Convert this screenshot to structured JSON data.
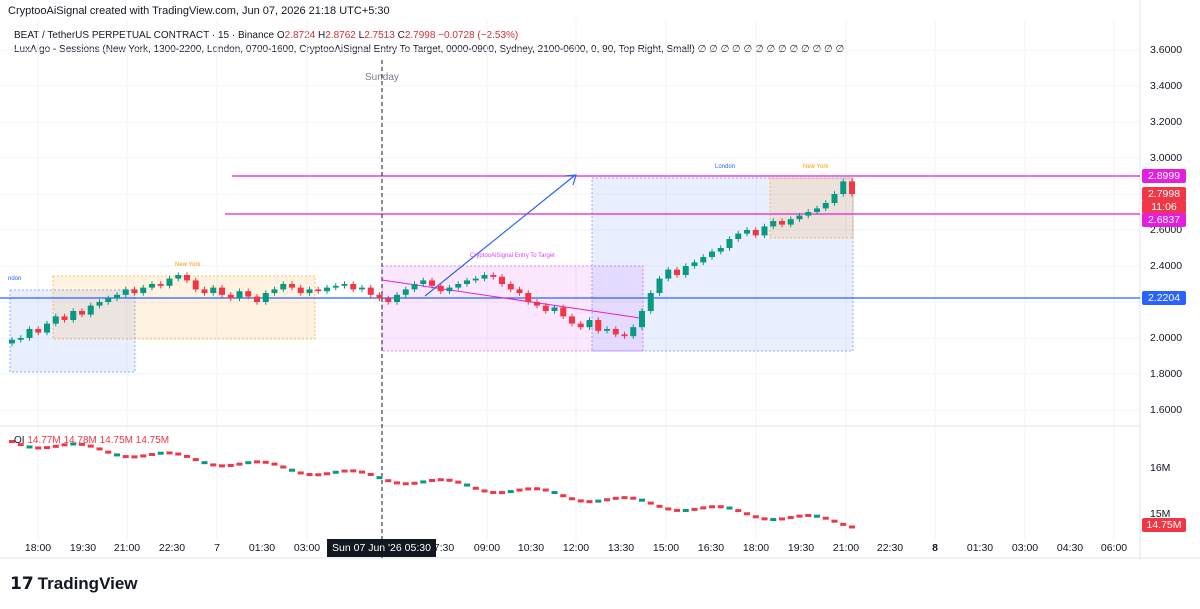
{
  "header": {
    "created_by": "CryptooAiSignal created with TradingView.com, Jun 07, 2026 21:18 UTC+5:30"
  },
  "symbol_legend": {
    "title": "BEAT / TetherUS PERPETUAL CONTRACT · 15 · Binance",
    "o_label": "O",
    "o_value": "2.8724",
    "h_label": "H",
    "h_value": "2.8762",
    "l_label": "L",
    "l_value": "2.7513",
    "c_label": "C",
    "c_value": "2.7998",
    "change": "−0.0728 (−2.53%)"
  },
  "indicator_legend": {
    "text": "LuxAlgo - Sessions (New York, 1300-2200, London, 0700-1600, CryptooAiSignal  Entry To Target, 0000-0900, Sydney, 2100-0600, 0, 90, Top Right, Small)",
    "suffix": "∅ ∅ ∅ ∅ ∅ ∅ ∅ ∅ ∅ ∅ ∅ ∅ ∅"
  },
  "day_marker": "Sunday",
  "sessions": {
    "london_left": "ndon",
    "new_york_left": "New York",
    "entry_target": "CryptooAiSignal  Entry To Target",
    "london_right": "London",
    "new_york_right": "New York"
  },
  "price_axis": [
    "3.6000",
    "3.4000",
    "3.2000",
    "3.0000",
    "2.6000",
    "2.4000",
    "2.0000",
    "1.8000",
    "1.6000"
  ],
  "price_tags": {
    "top_line": "2.8999",
    "last_price": "2.7998",
    "countdown": "11:06",
    "mid_line": "2.6837",
    "blue_line": "2.2204"
  },
  "volume_indicator": {
    "name": "OI",
    "values": [
      "14.77M",
      "14.78M",
      "14.75M",
      "14.75M"
    ],
    "axis": [
      "16M",
      "15M"
    ],
    "tag": "14.75M"
  },
  "time_axis": [
    "18:00",
    "19:30",
    "21:00",
    "22:30",
    "7",
    "01:30",
    "03:00",
    "7:30",
    "09:00",
    "10:30",
    "12:00",
    "13:30",
    "15:00",
    "16:30",
    "18:00",
    "19:30",
    "21:00",
    "22:30",
    "8",
    "01:30",
    "03:00",
    "04:30",
    "06:00"
  ],
  "cursor_time": "Sun 07 Jun '26   05:30",
  "branding": "TradingView",
  "colors": {
    "up": "#089981",
    "down": "#f23645",
    "magenta": "#e21ee0",
    "blue_line": "#2962ff",
    "london_fill": "#2962ff",
    "newyork_fill": "#ff9800",
    "entry_fill": "#e040fb"
  },
  "chart_data": {
    "type": "candlestick",
    "title": "BEAT / TetherUS PERPETUAL CONTRACT · 15 · Binance",
    "ylim": [
      1.5,
      3.7
    ],
    "close_series": [
      1.99,
      2.0,
      2.05,
      2.03,
      2.08,
      2.12,
      2.1,
      2.15,
      2.13,
      2.18,
      2.2,
      2.22,
      2.24,
      2.27,
      2.25,
      2.28,
      2.3,
      2.29,
      2.33,
      2.35,
      2.32,
      2.27,
      2.25,
      2.28,
      2.24,
      2.22,
      2.26,
      2.23,
      2.2,
      2.25,
      2.27,
      2.3,
      2.28,
      2.25,
      2.27,
      2.26,
      2.28,
      2.29,
      2.3,
      2.27,
      2.28,
      2.24,
      2.22,
      2.2,
      2.24,
      2.27,
      2.3,
      2.32,
      2.29,
      2.26,
      2.28,
      2.3,
      2.32,
      2.33,
      2.35,
      2.34,
      2.3,
      2.27,
      2.25,
      2.2,
      2.18,
      2.15,
      2.17,
      2.12,
      2.08,
      2.06,
      2.1,
      2.04,
      2.05,
      2.02,
      2.01,
      2.06,
      2.15,
      2.25,
      2.33,
      2.38,
      2.35,
      2.4,
      2.42,
      2.45,
      2.48,
      2.5,
      2.55,
      2.58,
      2.6,
      2.57,
      2.62,
      2.65,
      2.63,
      2.66,
      2.68,
      2.7,
      2.72,
      2.75,
      2.8,
      2.87,
      2.8
    ],
    "lines": {
      "top": 2.8999,
      "mid": 2.6837,
      "blue": 2.2204
    }
  }
}
